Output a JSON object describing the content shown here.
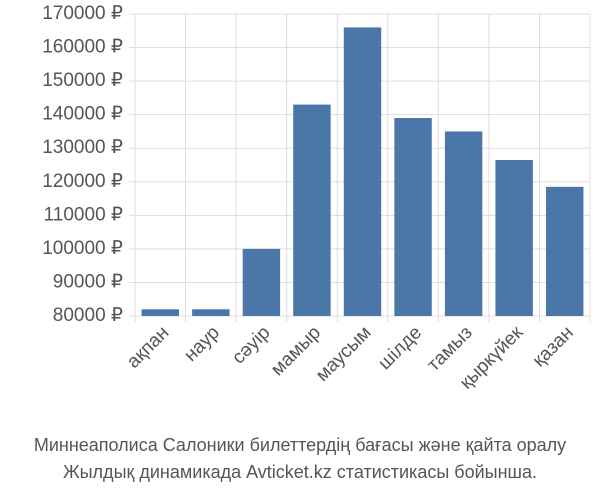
{
  "chart_data": {
    "type": "bar",
    "categories": [
      "ақпан",
      "наур",
      "сәуір",
      "мамыр",
      "маусым",
      "шілде",
      "тамыз",
      "қыркүйек",
      "қазан"
    ],
    "values": [
      82000,
      82000,
      100000,
      143000,
      166000,
      139000,
      135000,
      126500,
      118500
    ],
    "color": "#4a76a8",
    "ylim": [
      80000,
      170000
    ],
    "yticks": [
      {
        "value": 80000,
        "label": "80000 ₽"
      },
      {
        "value": 90000,
        "label": "90000 ₽"
      },
      {
        "value": 100000,
        "label": "100000 ₽"
      },
      {
        "value": 110000,
        "label": "110000 ₽"
      },
      {
        "value": 120000,
        "label": "120000 ₽"
      },
      {
        "value": 130000,
        "label": "130000 ₽"
      },
      {
        "value": 140000,
        "label": "140000 ₽"
      },
      {
        "value": 150000,
        "label": "150000 ₽"
      },
      {
        "value": 160000,
        "label": "160000 ₽"
      },
      {
        "value": 170000,
        "label": "170000 ₽"
      }
    ],
    "grid": true,
    "caption": [
      "Миннеаполиса Салоники билеттердің бағасы және қайта оралу",
      "Жылдық динамикада Avticket.kz статистикасы бойынша."
    ]
  }
}
